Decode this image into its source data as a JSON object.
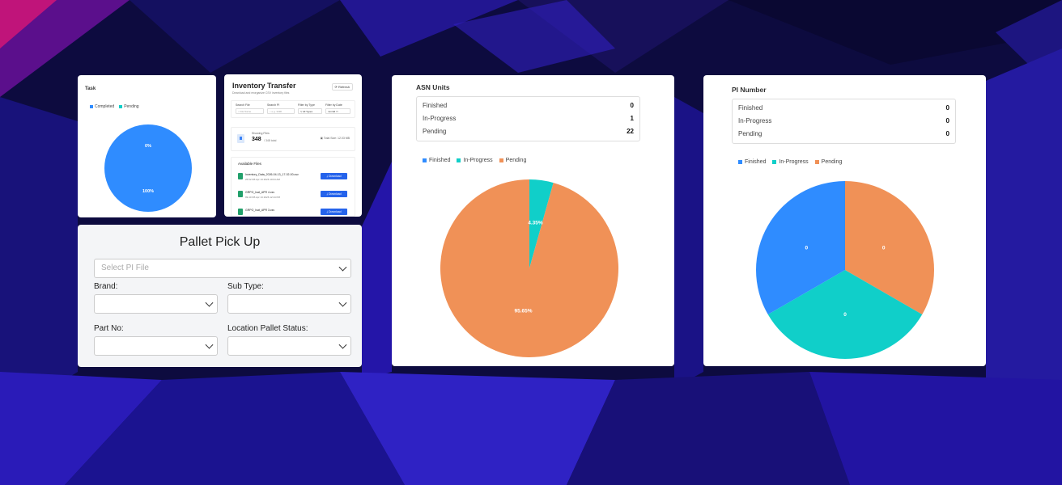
{
  "colors": {
    "blue": "#2f8cff",
    "teal": "#10cfc9",
    "orange": "#f09157"
  },
  "task": {
    "title": "Task",
    "legend": [
      "Completed",
      "Pending"
    ],
    "labels": {
      "pending": "0%",
      "completed": "100%"
    }
  },
  "inventory": {
    "title": "Inventory Transfer",
    "subtitle": "Download and reorganize CSV inventory files",
    "refresh": "Refresh",
    "filters": [
      {
        "label": "Search File",
        "placeholder": "File Name"
      },
      {
        "label": "Search PI",
        "placeholder": "e.g. 3490"
      },
      {
        "label": "Filter by Type",
        "value": "All Types"
      },
      {
        "label": "Filter by Date",
        "value": "mm/dd"
      }
    ],
    "showing_label": "Showing Files",
    "showing_value": "348",
    "showing_total": "/ 348 total",
    "total_size": "Total Size: 12.03 MB",
    "available_title": "Available Files",
    "files": [
      {
        "name": "Inventory_Data_2026-04-13_17-02-00.csv",
        "meta": "25.52 KB   Apr 13 2026 10:04 AM",
        "button": "Download"
      },
      {
        "name": "GRPO_Isat_APR 4.csv",
        "meta": "99.40 KB   Apr 13 2026 12:44 PM",
        "button": "Download"
      },
      {
        "name": "GRPO_Isat_APR 3.csv",
        "meta": "",
        "button": "Download"
      }
    ]
  },
  "pallet": {
    "title": "Pallet Pick Up",
    "pi_placeholder": "Select PI File",
    "brand": "Brand:",
    "sub_type": "Sub Type:",
    "part_no": "Part No:",
    "location_status": "Location Pallet Status:"
  },
  "asn": {
    "title": "ASN Units",
    "rows": [
      {
        "label": "Finished",
        "value": "0"
      },
      {
        "label": "In-Progress",
        "value": "1"
      },
      {
        "label": "Pending",
        "value": "22"
      }
    ],
    "legend": [
      "Finished",
      "In-Progress",
      "Pending"
    ],
    "pie_labels": {
      "inprogress": "4.35%",
      "pending": "95.65%"
    }
  },
  "pi": {
    "title": "PI Number",
    "rows": [
      {
        "label": "Finished",
        "value": "0"
      },
      {
        "label": "In-Progress",
        "value": "0"
      },
      {
        "label": "Pending",
        "value": "0"
      }
    ],
    "legend": [
      "Finished",
      "In-Progress",
      "Pending"
    ],
    "pie_labels": [
      "0",
      "0",
      "0"
    ]
  },
  "chart_data": [
    {
      "type": "pie",
      "categories": [
        "Completed",
        "Pending"
      ],
      "values": [
        100,
        0
      ],
      "labels": [
        "100%",
        "0%"
      ]
    },
    {
      "type": "pie",
      "title": "ASN Units",
      "categories": [
        "Finished",
        "In-Progress",
        "Pending"
      ],
      "values": [
        0,
        1,
        22
      ],
      "labels": [
        "",
        "4.35%",
        "95.65%"
      ]
    },
    {
      "type": "pie",
      "title": "PI Number",
      "categories": [
        "Finished",
        "In-Progress",
        "Pending"
      ],
      "values": [
        0,
        0,
        0
      ],
      "labels": [
        "0",
        "0",
        "0"
      ]
    }
  ]
}
